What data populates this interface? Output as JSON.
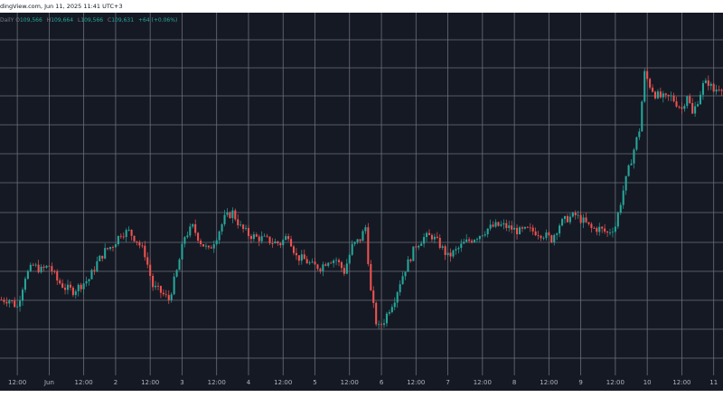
{
  "header": {
    "source_line": "dingView.com, Jun 11, 2025 11:41 UTC+3"
  },
  "ohlc": {
    "symbol_fragment": "DailY",
    "open_label": "O",
    "open": "109,566",
    "high_label": "H",
    "high": "109,664",
    "low_label": "L",
    "low": "109,566",
    "close_label": "C",
    "close": "109,631",
    "change": "+64 (+0.06%)"
  },
  "colors": {
    "background": "#151924",
    "grid": "#6b6f78",
    "up": "#26a69a",
    "down": "#ef5350",
    "text": "#b2b5be"
  },
  "chart_data": {
    "type": "line",
    "subtype": "candlestick",
    "title": "",
    "xlabel": "",
    "ylabel": "",
    "grid": true,
    "legend": "none",
    "x_tick_labels": [
      "12:00",
      "Jun",
      "12:00",
      "2",
      "12:00",
      "3",
      "12:00",
      "4",
      "12:00",
      "5",
      "12:00",
      "6",
      "12:00",
      "7",
      "12:00",
      "8",
      "12:00",
      "9",
      "12:00",
      "10",
      "12:00",
      "11"
    ],
    "x_tick_index": [
      6,
      18,
      31,
      43,
      56,
      68,
      81,
      93,
      106,
      118,
      131,
      143,
      156,
      168,
      181,
      193,
      206,
      218,
      231,
      243,
      256,
      268
    ],
    "close_path": [
      [
        0,
        0.155
      ],
      [
        3,
        0.155
      ],
      [
        6,
        0.13
      ],
      [
        9,
        0.235
      ],
      [
        12,
        0.27
      ],
      [
        15,
        0.255
      ],
      [
        18,
        0.27
      ],
      [
        21,
        0.22
      ],
      [
        24,
        0.195
      ],
      [
        27,
        0.185
      ],
      [
        30,
        0.205
      ],
      [
        33,
        0.225
      ],
      [
        36,
        0.28
      ],
      [
        39,
        0.32
      ],
      [
        42,
        0.34
      ],
      [
        45,
        0.38
      ],
      [
        48,
        0.385
      ],
      [
        51,
        0.355
      ],
      [
        54,
        0.31
      ],
      [
        57,
        0.2
      ],
      [
        60,
        0.18
      ],
      [
        63,
        0.155
      ],
      [
        66,
        0.25
      ],
      [
        69,
        0.37
      ],
      [
        72,
        0.4
      ],
      [
        75,
        0.35
      ],
      [
        78,
        0.32
      ],
      [
        81,
        0.37
      ],
      [
        84,
        0.43
      ],
      [
        87,
        0.45
      ],
      [
        90,
        0.4
      ],
      [
        93,
        0.375
      ],
      [
        96,
        0.365
      ],
      [
        99,
        0.36
      ],
      [
        102,
        0.35
      ],
      [
        105,
        0.345
      ],
      [
        108,
        0.375
      ],
      [
        111,
        0.3
      ],
      [
        114,
        0.29
      ],
      [
        117,
        0.27
      ],
      [
        120,
        0.265
      ],
      [
        123,
        0.29
      ],
      [
        126,
        0.29
      ],
      [
        129,
        0.25
      ],
      [
        132,
        0.335
      ],
      [
        135,
        0.36
      ],
      [
        137,
        0.4
      ],
      [
        139,
        0.18
      ],
      [
        141,
        0.08
      ],
      [
        142,
        0.06
      ],
      [
        144,
        0.085
      ],
      [
        146,
        0.125
      ],
      [
        148,
        0.16
      ],
      [
        150,
        0.215
      ],
      [
        152,
        0.26
      ],
      [
        154,
        0.3
      ],
      [
        156,
        0.34
      ],
      [
        159,
        0.365
      ],
      [
        162,
        0.37
      ],
      [
        165,
        0.34
      ],
      [
        168,
        0.3
      ],
      [
        171,
        0.32
      ],
      [
        174,
        0.345
      ],
      [
        177,
        0.36
      ],
      [
        180,
        0.375
      ],
      [
        183,
        0.395
      ],
      [
        186,
        0.405
      ],
      [
        189,
        0.405
      ],
      [
        192,
        0.395
      ],
      [
        195,
        0.385
      ],
      [
        198,
        0.39
      ],
      [
        201,
        0.385
      ],
      [
        204,
        0.375
      ],
      [
        207,
        0.36
      ],
      [
        210,
        0.41
      ],
      [
        213,
        0.43
      ],
      [
        216,
        0.44
      ],
      [
        219,
        0.42
      ],
      [
        222,
        0.395
      ],
      [
        225,
        0.395
      ],
      [
        228,
        0.38
      ],
      [
        231,
        0.405
      ],
      [
        234,
        0.525
      ],
      [
        237,
        0.63
      ],
      [
        240,
        0.73
      ],
      [
        242,
        0.92
      ],
      [
        244,
        0.88
      ],
      [
        246,
        0.85
      ],
      [
        248,
        0.84
      ],
      [
        250,
        0.835
      ],
      [
        252,
        0.84
      ],
      [
        254,
        0.82
      ],
      [
        256,
        0.8
      ],
      [
        258,
        0.85
      ],
      [
        260,
        0.78
      ],
      [
        262,
        0.83
      ],
      [
        264,
        0.88
      ],
      [
        266,
        0.89
      ],
      [
        268,
        0.86
      ],
      [
        270,
        0.875
      ]
    ],
    "y_scale": "relative price (0 = lowest, 1 = highest in view)",
    "candle_count": 272,
    "ylim": [
      0,
      1
    ]
  }
}
